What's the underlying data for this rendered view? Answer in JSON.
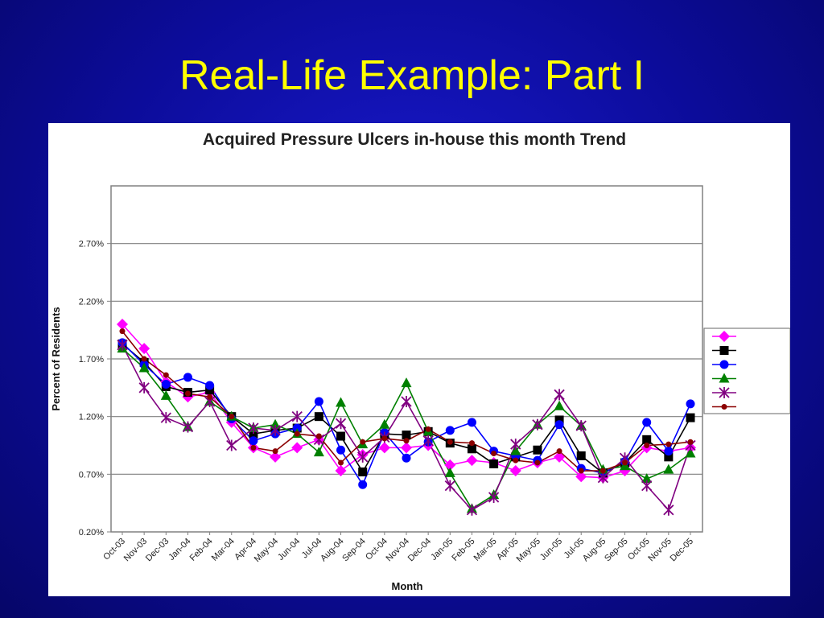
{
  "slide": {
    "title": "Real-Life Example: Part I"
  },
  "colors": {
    "background": "#0c0c9a",
    "title": "#ffff00",
    "series_magenta": "#ff00ff",
    "series_black": "#000000",
    "series_blue": "#0000ff",
    "series_green": "#008000",
    "series_purple": "#800080",
    "series_darkred": "#8b0000"
  },
  "chart_data": {
    "type": "line",
    "title": "Acquired Pressure Ulcers in-house this month Trend",
    "xlabel": "Month",
    "ylabel": "Percent of Residents",
    "ylim": [
      0.2,
      3.2
    ],
    "yticks": [
      "0.20%",
      "0.70%",
      "1.20%",
      "1.70%",
      "2.20%",
      "2.70%"
    ],
    "ytick_values": [
      0.2,
      0.7,
      1.2,
      1.7,
      2.2,
      2.7
    ],
    "grid": true,
    "legend": "right",
    "categories": [
      "Oct-03",
      "Nov-03",
      "Dec-03",
      "Jan-04",
      "Feb-04",
      "Mar-04",
      "Apr-04",
      "May-04",
      "Jun-04",
      "Jul-04",
      "Aug-04",
      "Sep-04",
      "Oct-04",
      "Nov-04",
      "Dec-04",
      "Jan-05",
      "Feb-05",
      "Mar-05",
      "Apr-05",
      "May-05",
      "Jun-05",
      "Jul-05",
      "Aug-05",
      "Sep-05",
      "Oct-05",
      "Nov-05",
      "Dec-05"
    ],
    "series": [
      {
        "color": "#ff00ff",
        "marker": "diamond",
        "values": [
          2.0,
          1.79,
          1.5,
          1.37,
          1.41,
          1.15,
          0.93,
          0.85,
          0.93,
          1.0,
          0.73,
          0.87,
          0.93,
          0.93,
          0.95,
          0.78,
          0.82,
          0.8,
          0.73,
          0.8,
          0.85,
          0.68,
          0.67,
          0.73,
          0.93,
          0.9,
          0.93
        ]
      },
      {
        "color": "#000000",
        "marker": "square",
        "values": [
          1.83,
          1.67,
          1.46,
          1.41,
          1.43,
          1.2,
          1.05,
          1.08,
          1.1,
          1.2,
          1.03,
          0.72,
          1.05,
          1.04,
          1.07,
          0.97,
          0.92,
          0.79,
          0.85,
          0.91,
          1.17,
          0.86,
          0.71,
          0.8,
          1.0,
          0.85,
          1.19
        ]
      },
      {
        "color": "#0000ff",
        "marker": "circle",
        "values": [
          1.84,
          1.65,
          1.48,
          1.54,
          1.47,
          1.18,
          0.99,
          1.05,
          1.1,
          1.33,
          0.91,
          0.61,
          1.06,
          0.84,
          0.98,
          1.08,
          1.15,
          0.9,
          0.86,
          0.82,
          1.13,
          0.75,
          0.71,
          0.81,
          1.15,
          0.9,
          1.31
        ]
      },
      {
        "color": "#008000",
        "marker": "triangle",
        "values": [
          1.79,
          1.62,
          1.38,
          1.11,
          1.33,
          1.2,
          1.1,
          1.13,
          1.05,
          0.89,
          1.32,
          0.96,
          1.13,
          1.49,
          1.07,
          0.71,
          0.4,
          0.52,
          0.9,
          1.13,
          1.29,
          1.12,
          0.74,
          0.77,
          0.66,
          0.74,
          0.88
        ]
      },
      {
        "color": "#800080",
        "marker": "star",
        "values": [
          1.82,
          1.45,
          1.19,
          1.11,
          1.33,
          0.95,
          1.1,
          1.08,
          1.2,
          1.0,
          1.14,
          0.85,
          1.02,
          1.33,
          0.99,
          0.6,
          0.39,
          0.5,
          0.96,
          1.13,
          1.39,
          1.12,
          0.67,
          0.84,
          0.6,
          0.39,
          0.95
        ]
      },
      {
        "color": "#8b0000",
        "marker": "circle-small",
        "values": [
          1.94,
          1.7,
          1.56,
          1.4,
          1.37,
          1.2,
          0.93,
          0.9,
          1.05,
          1.03,
          0.8,
          0.98,
          1.01,
          0.99,
          1.09,
          0.98,
          0.97,
          0.88,
          0.82,
          0.8,
          0.9,
          0.73,
          0.73,
          0.8,
          0.95,
          0.96,
          0.98
        ]
      }
    ]
  }
}
